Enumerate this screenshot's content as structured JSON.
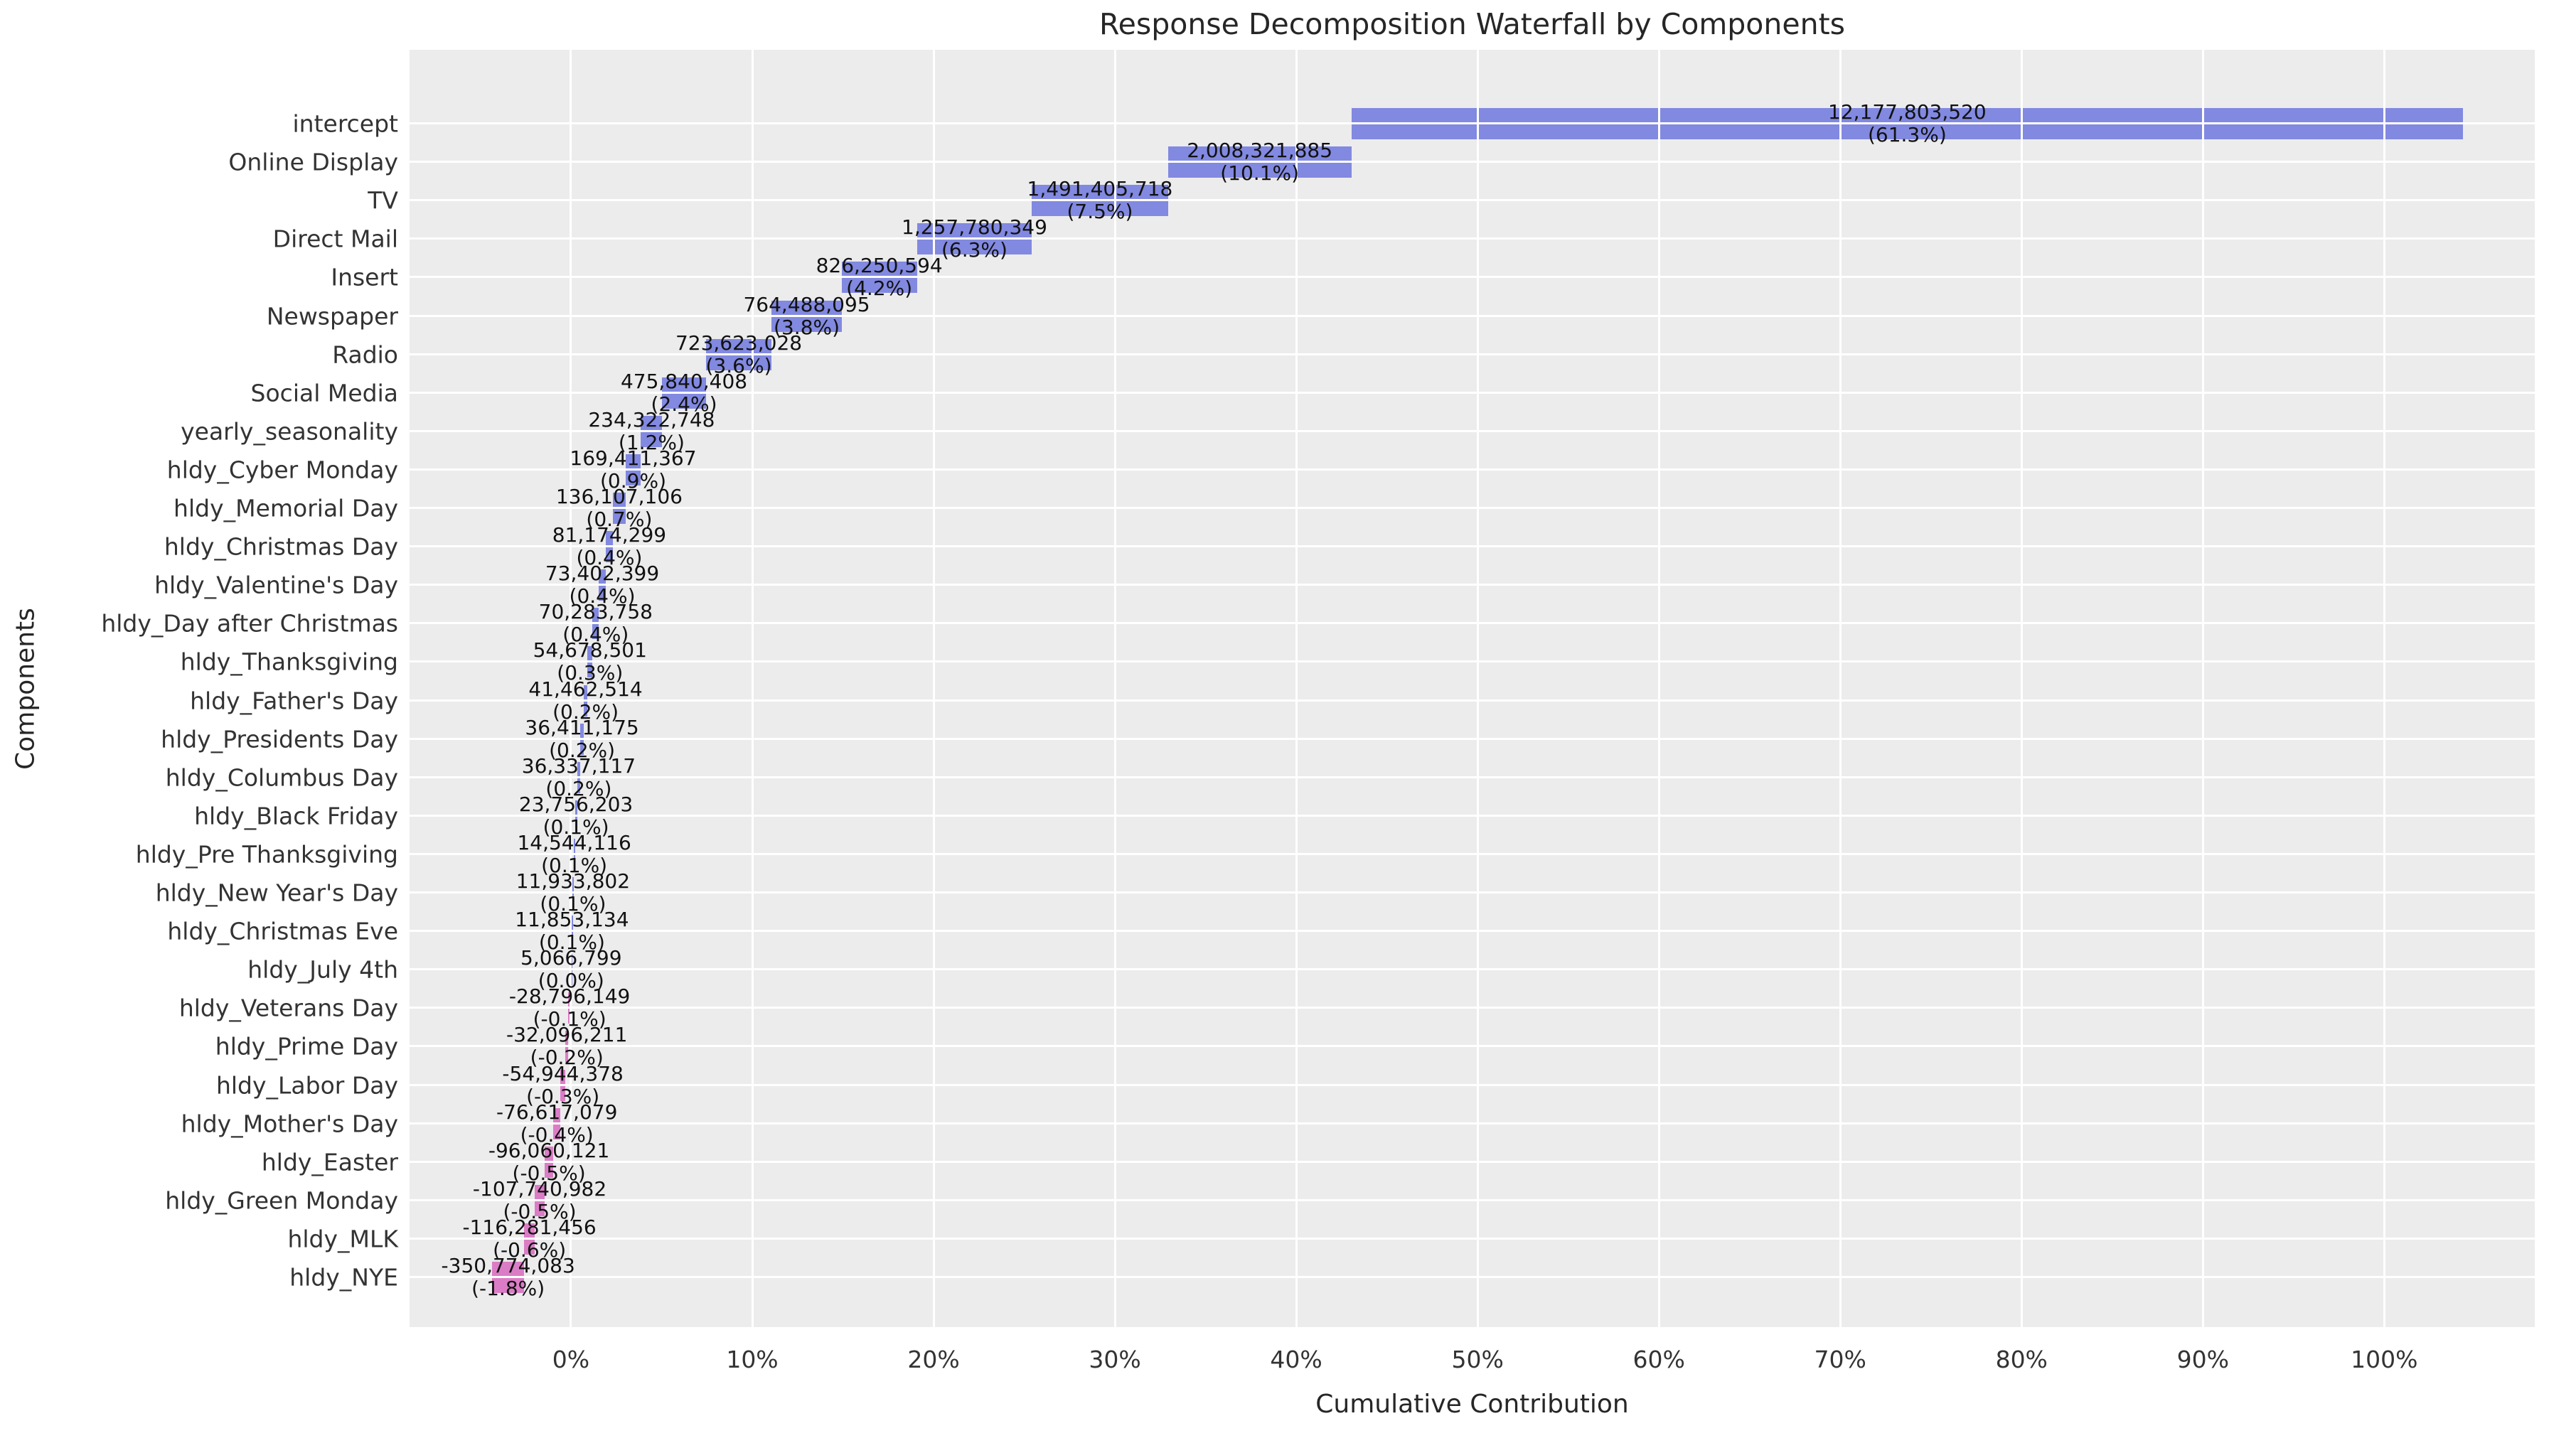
{
  "title": "Response Decomposition Waterfall by Components",
  "x_axis_title": "Cumulative Contribution",
  "y_axis_title": "Components",
  "colors": {
    "positive_bar": "#8289E0",
    "negative_bar": "#DB7DC6",
    "plot_background": "#ECECEC",
    "gridline": "#FFFFFF",
    "label_text": "#111111",
    "tick_text": "#333333",
    "title_text": "#262626"
  },
  "chart_data": {
    "type": "bar",
    "subtype": "horizontal-waterfall",
    "title": "Response Decomposition Waterfall by Components",
    "xlabel": "Cumulative Contribution",
    "ylabel": "Components",
    "legend": "none",
    "grid": "on",
    "xlim": [
      -8.9,
      108.3
    ],
    "x_ticks": [
      {
        "pct": 0,
        "label": "0%"
      },
      {
        "pct": 10,
        "label": "10%"
      },
      {
        "pct": 20,
        "label": "20%"
      },
      {
        "pct": 30,
        "label": "30%"
      },
      {
        "pct": 40,
        "label": "40%"
      },
      {
        "pct": 50,
        "label": "50%"
      },
      {
        "pct": 60,
        "label": "60%"
      },
      {
        "pct": 70,
        "label": "70%"
      },
      {
        "pct": 80,
        "label": "80%"
      },
      {
        "pct": 90,
        "label": "90%"
      },
      {
        "pct": 100,
        "label": "100%"
      }
    ],
    "categories": [
      "intercept",
      "Online Display",
      "TV",
      "Direct Mail",
      "Insert",
      "Newspaper",
      "Radio",
      "Social Media",
      "yearly_seasonality",
      "hldy_Cyber Monday",
      "hldy_Memorial Day",
      "hldy_Christmas Day",
      "hldy_Valentine's Day",
      "hldy_Day after Christmas",
      "hldy_Thanksgiving",
      "hldy_Father's Day",
      "hldy_Presidents Day",
      "hldy_Columbus Day",
      "hldy_Black Friday",
      "hldy_Pre Thanksgiving",
      "hldy_New Year's Day",
      "hldy_Christmas Eve",
      "hldy_July 4th",
      "hldy_Veterans Day",
      "hldy_Prime Day",
      "hldy_Labor Day",
      "hldy_Mother's Day",
      "hldy_Easter",
      "hldy_Green Monday",
      "hldy_MLK",
      "hldy_NYE"
    ],
    "values": [
      12177803520,
      2008321885,
      1491405718,
      1257780349,
      826250594,
      764488095,
      723623028,
      475840408,
      234322748,
      169411367,
      136107106,
      81174299,
      73402399,
      70283758,
      54678501,
      41462514,
      36411175,
      36337117,
      23756203,
      14544116,
      11933802,
      11853134,
      5066799,
      -28796149,
      -32096211,
      -54944378,
      -76617079,
      -96060121,
      -107740982,
      -116281456,
      -350774083
    ],
    "value_labels": [
      "12,177,803,520",
      "2,008,321,885",
      "1,491,405,718",
      "1,257,780,349",
      "826,250,594",
      "764,488,095",
      "723,623,028",
      "475,840,408",
      "234,322,748",
      "169,411,367",
      "136,107,106",
      "81,174,299",
      "73,402,399",
      "70,283,758",
      "54,678,501",
      "41,462,514",
      "36,411,175",
      "36,337,117",
      "23,756,203",
      "14,544,116",
      "11,933,802",
      "11,853,134",
      "5,066,799",
      "-28,796,149",
      "-32,096,211",
      "-54,944,378",
      "-76,617,079",
      "-96,060,121",
      "-107,740,982",
      "-116,281,456",
      "-350,774,083"
    ],
    "pct_labels": [
      "(61.3%)",
      "(10.1%)",
      "(7.5%)",
      "(6.3%)",
      "(4.2%)",
      "(3.8%)",
      "(3.6%)",
      "(2.4%)",
      "(1.2%)",
      "(0.9%)",
      "(0.7%)",
      "(0.4%)",
      "(0.4%)",
      "(0.4%)",
      "(0.3%)",
      "(0.2%)",
      "(0.2%)",
      "(0.2%)",
      "(0.1%)",
      "(0.1%)",
      "(0.1%)",
      "(0.1%)",
      "(0.0%)",
      "(-0.1%)",
      "(-0.2%)",
      "(-0.3%)",
      "(-0.4%)",
      "(-0.5%)",
      "(-0.5%)",
      "(-0.6%)",
      "(-1.8%)"
    ]
  }
}
